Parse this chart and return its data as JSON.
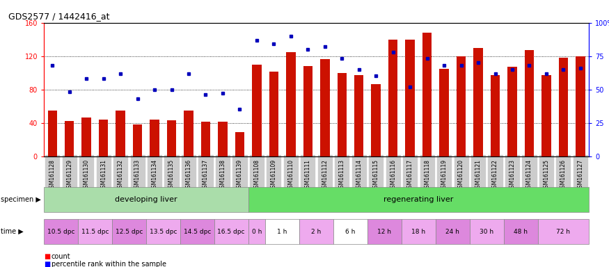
{
  "title": "GDS2577 / 1442416_at",
  "samples": [
    "GSM161128",
    "GSM161129",
    "GSM161130",
    "GSM161131",
    "GSM161132",
    "GSM161133",
    "GSM161134",
    "GSM161135",
    "GSM161136",
    "GSM161137",
    "GSM161138",
    "GSM161139",
    "GSM161108",
    "GSM161109",
    "GSM161110",
    "GSM161111",
    "GSM161112",
    "GSM161113",
    "GSM161114",
    "GSM161115",
    "GSM161116",
    "GSM161117",
    "GSM161118",
    "GSM161119",
    "GSM161120",
    "GSM161121",
    "GSM161122",
    "GSM161123",
    "GSM161124",
    "GSM161125",
    "GSM161126",
    "GSM161127"
  ],
  "counts": [
    55,
    42,
    46,
    44,
    55,
    38,
    44,
    43,
    55,
    41,
    41,
    29,
    110,
    101,
    125,
    108,
    116,
    100,
    97,
    86,
    140,
    140,
    148,
    105,
    120,
    130,
    97,
    107,
    127,
    97,
    118,
    120
  ],
  "percentile_ranks": [
    68,
    48,
    58,
    58,
    62,
    43,
    50,
    50,
    62,
    46,
    47,
    35,
    87,
    84,
    90,
    80,
    82,
    73,
    65,
    60,
    78,
    52,
    73,
    68,
    68,
    70,
    62,
    65,
    68,
    62,
    65,
    66
  ],
  "specimen_groups": [
    {
      "label": "developing liver",
      "start": 0,
      "end": 12,
      "color": "#aaddaa"
    },
    {
      "label": "regenerating liver",
      "start": 12,
      "end": 32,
      "color": "#66dd66"
    }
  ],
  "time_groups": [
    {
      "label": "10.5 dpc",
      "start": 0,
      "end": 2,
      "color": "#dd88dd"
    },
    {
      "label": "11.5 dpc",
      "start": 2,
      "end": 4,
      "color": "#eeaaee"
    },
    {
      "label": "12.5 dpc",
      "start": 4,
      "end": 6,
      "color": "#dd88dd"
    },
    {
      "label": "13.5 dpc",
      "start": 6,
      "end": 8,
      "color": "#eeaaee"
    },
    {
      "label": "14.5 dpc",
      "start": 8,
      "end": 10,
      "color": "#dd88dd"
    },
    {
      "label": "16.5 dpc",
      "start": 10,
      "end": 12,
      "color": "#eeaaee"
    },
    {
      "label": "0 h",
      "start": 12,
      "end": 13,
      "color": "#eeaaee"
    },
    {
      "label": "1 h",
      "start": 13,
      "end": 15,
      "color": "#ffffff"
    },
    {
      "label": "2 h",
      "start": 15,
      "end": 17,
      "color": "#eeaaee"
    },
    {
      "label": "6 h",
      "start": 17,
      "end": 19,
      "color": "#ffffff"
    },
    {
      "label": "12 h",
      "start": 19,
      "end": 21,
      "color": "#dd88dd"
    },
    {
      "label": "18 h",
      "start": 21,
      "end": 23,
      "color": "#eeaaee"
    },
    {
      "label": "24 h",
      "start": 23,
      "end": 25,
      "color": "#dd88dd"
    },
    {
      "label": "30 h",
      "start": 25,
      "end": 27,
      "color": "#eeaaee"
    },
    {
      "label": "48 h",
      "start": 27,
      "end": 29,
      "color": "#dd88dd"
    },
    {
      "label": "72 h",
      "start": 29,
      "end": 32,
      "color": "#eeaaee"
    }
  ],
  "ylim_left": [
    0,
    160
  ],
  "ylim_right": [
    0,
    100
  ],
  "yticks_left": [
    0,
    40,
    80,
    120,
    160
  ],
  "yticks_right": [
    0,
    25,
    50,
    75,
    100
  ],
  "bar_color": "#cc1100",
  "dot_color": "#0000bb",
  "bg_color": "#ffffff",
  "bar_width": 0.55
}
